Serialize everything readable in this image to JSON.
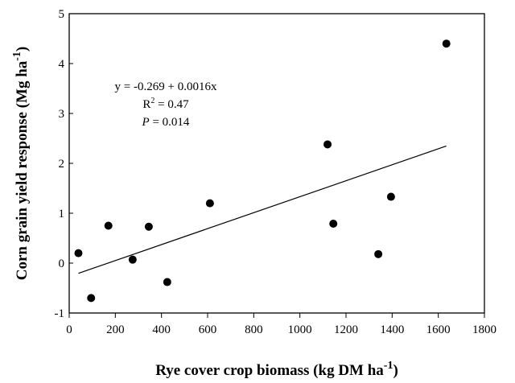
{
  "chart_data": {
    "type": "scatter",
    "xlabel": "Rye cover crop biomass (kg DM ha",
    "xlabel_sup": "-1",
    "xlabel_close": ")",
    "ylabel": "Corn grain yield response (Mg ha",
    "ylabel_sup": "-1",
    "ylabel_close": ")",
    "xlim": [
      0,
      1800
    ],
    "ylim": [
      -1,
      5
    ],
    "xticks": [
      0,
      200,
      400,
      600,
      800,
      1000,
      1200,
      1400,
      1600,
      1800
    ],
    "yticks": [
      -1,
      0,
      1,
      2,
      3,
      4,
      5
    ],
    "points": [
      {
        "x": 40,
        "y": 0.2
      },
      {
        "x": 95,
        "y": -0.7
      },
      {
        "x": 170,
        "y": 0.75
      },
      {
        "x": 275,
        "y": 0.07
      },
      {
        "x": 345,
        "y": 0.73
      },
      {
        "x": 425,
        "y": -0.38
      },
      {
        "x": 610,
        "y": 1.2
      },
      {
        "x": 1120,
        "y": 2.38
      },
      {
        "x": 1145,
        "y": 0.79
      },
      {
        "x": 1340,
        "y": 0.18
      },
      {
        "x": 1395,
        "y": 1.33
      },
      {
        "x": 1635,
        "y": 4.4
      }
    ],
    "regression": {
      "intercept": -0.269,
      "slope": 0.0016,
      "x_range": [
        40,
        1635
      ]
    },
    "annotations": {
      "equation": "y = -0.269 + 0.0016x",
      "r2_prefix": "R",
      "r2_sup": "2",
      "r2_suffix": " = 0.47",
      "p_italic": "P",
      "p_suffix": " = 0.014"
    }
  }
}
